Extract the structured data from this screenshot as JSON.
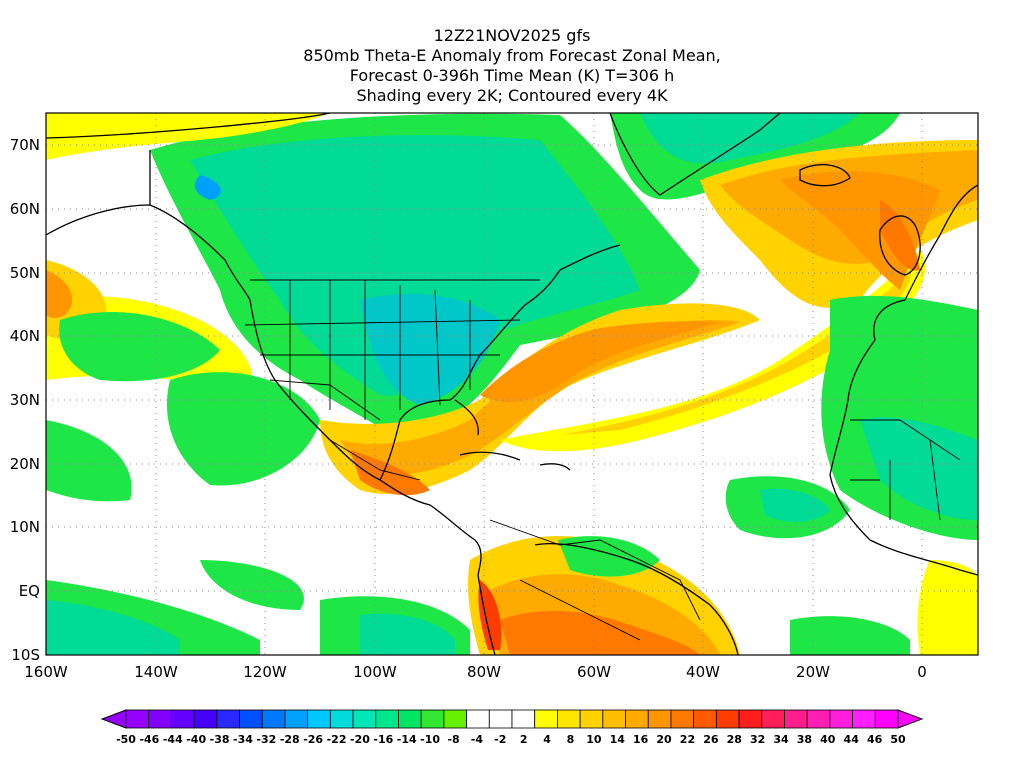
{
  "title": {
    "line1": "12Z21NOV2025 gfs",
    "line2": "850mb Theta-E Anomaly from Forecast Zonal Mean,",
    "line3": "Forecast 0-396h Time Mean (K) T=306 h",
    "line4": "Shading every 2K; Contoured every 4K"
  },
  "map": {
    "lat_labels": [
      "70N",
      "60N",
      "50N",
      "40N",
      "30N",
      "20N",
      "10N",
      "EQ",
      "10S"
    ],
    "lon_labels": [
      "160W",
      "140W",
      "120W",
      "100W",
      "80W",
      "60W",
      "40W",
      "20W",
      "0"
    ],
    "lat_range": [
      -10,
      74
    ],
    "lon_range": [
      -160,
      10
    ],
    "grid": "dotted",
    "colors": {
      "cool_dark": "#00c8c8",
      "cool_mid": "#00dc96",
      "cool_light": "#1ee646",
      "neutral": "#ffffff",
      "warm_yellow": "#ffff00",
      "warm_gold": "#ffd400",
      "warm_orange": "#ff9600",
      "warm_red_orange": "#ff6400",
      "warm_red": "#ff2828"
    }
  },
  "colorbar": {
    "labels": [
      "-50",
      "-46",
      "-44",
      "-40",
      "-38",
      "-34",
      "-32",
      "-28",
      "-26",
      "-22",
      "-20",
      "-16",
      "-14",
      "-10",
      "-8",
      "-4",
      "-2",
      "2",
      "4",
      "8",
      "10",
      "14",
      "16",
      "20",
      "22",
      "26",
      "28",
      "32",
      "34",
      "38",
      "40",
      "44",
      "46",
      "50"
    ],
    "colors": [
      "#9600ff",
      "#8200ff",
      "#6400ff",
      "#4600ff",
      "#2828ff",
      "#0050ff",
      "#0078ff",
      "#00a0ff",
      "#00c8ff",
      "#00dcdc",
      "#00e6b4",
      "#00e68c",
      "#00e664",
      "#32e632",
      "#64f000",
      "#ffffff",
      "#ffffff",
      "#ffffff",
      "#ffff00",
      "#ffe600",
      "#ffd200",
      "#ffbe00",
      "#ffaa00",
      "#ff9600",
      "#ff7800",
      "#ff5a00",
      "#ff3c00",
      "#ff1e1e",
      "#ff1e5a",
      "#ff1e8c",
      "#ff1eb4",
      "#ff1edc",
      "#ff1eff",
      "#ff00ff"
    ]
  }
}
